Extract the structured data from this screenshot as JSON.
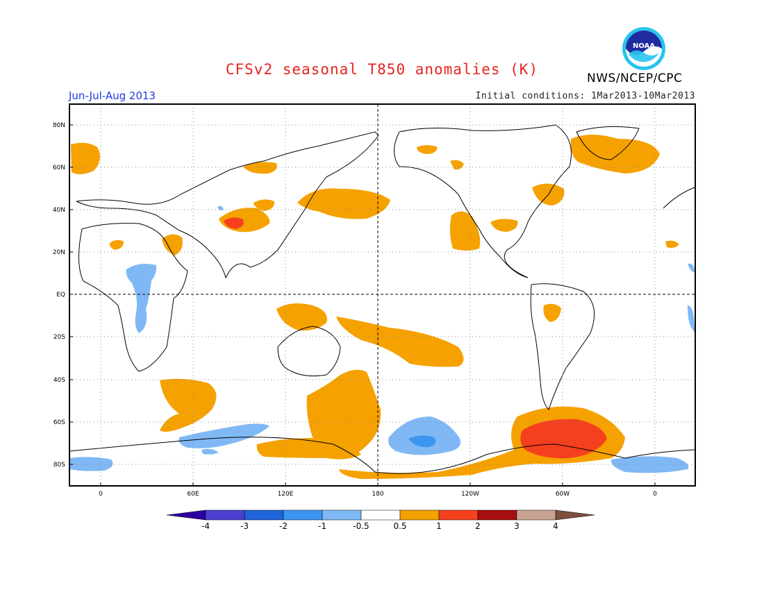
{
  "header": {
    "title": "CFSv2 seasonal T850 anomalies (K)",
    "org": "NWS/NCEP/CPC",
    "period": "Jun-Jul-Aug 2013",
    "initial_conditions": "Initial conditions: 1Mar2013-10Mar2013",
    "logo_text": "NOAA"
  },
  "map": {
    "lat_labels": [
      "80N",
      "60N",
      "40N",
      "20N",
      "EQ",
      "20S",
      "40S",
      "60S",
      "80S"
    ],
    "lon_labels": [
      "0",
      "60E",
      "120E",
      "180",
      "120W",
      "60W",
      "0"
    ]
  },
  "legend": {
    "labels": [
      "-4",
      "-3",
      "-2",
      "-1",
      "-0.5",
      "0.5",
      "1",
      "2",
      "3",
      "4"
    ],
    "colors": [
      "#2b00a0",
      "#4b3fd0",
      "#1e64d8",
      "#3c96f0",
      "#7fb8f5",
      "#ffffff",
      "#f5a100",
      "#f5401e",
      "#a50f0f",
      "#c9a293",
      "#7c4f3f"
    ]
  },
  "colors": {
    "orange": "#f5a100",
    "red": "#f5401e",
    "light_blue": "#7fb8f5",
    "blue": "#3c96f0",
    "title_red": "#e8231f",
    "period_blue": "#1c3be0"
  }
}
